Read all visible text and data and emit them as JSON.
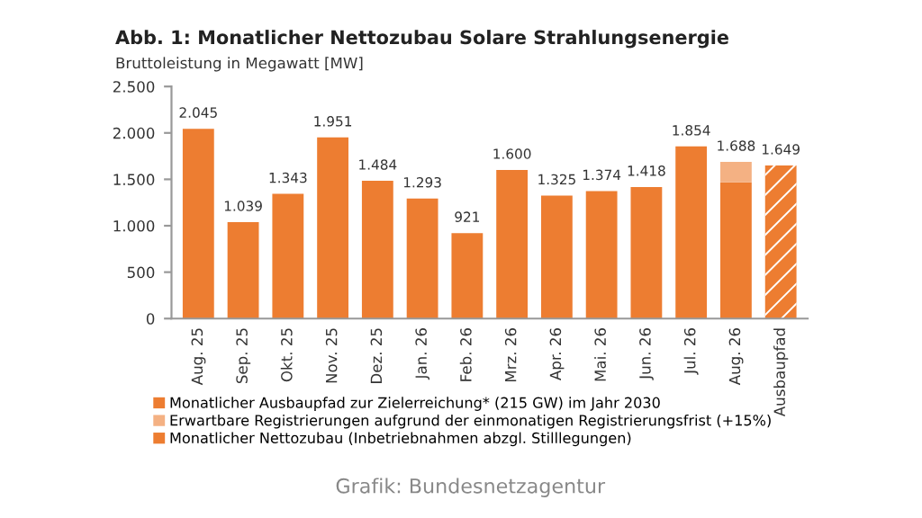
{
  "chart_data": {
    "type": "bar",
    "title": "Abb. 1: Monatlicher Nettozubau Solare Strahlungsenergie",
    "subtitle": "Bruttoleistung in Megawatt [MW]",
    "categories": [
      "Aug. 25",
      "Sep. 25",
      "Okt. 25",
      "Nov. 25",
      "Dez. 25",
      "Jan. 26",
      "Feb. 26",
      "Mrz. 26",
      "Apr. 26",
      "Mai. 26",
      "Jun. 26",
      "Jul. 26",
      "Aug. 26",
      "Ausbaupfad"
    ],
    "stacked": true,
    "series": [
      {
        "name": "Monatlicher Nettozubau (Inbetriebnahmen abzgl. Stilllegungen)",
        "color": "#ed7d31",
        "values": [
          2045,
          1039,
          1343,
          1951,
          1484,
          1293,
          921,
          1600,
          1325,
          1374,
          1418,
          1854,
          1468,
          null
        ]
      },
      {
        "name": "Erwartbare Registrierungen aufgrund der einmonatigen Registrierungsfrist (+15%)",
        "color": "#f4b183",
        "values": [
          null,
          null,
          null,
          null,
          null,
          null,
          null,
          null,
          null,
          null,
          null,
          null,
          220,
          null
        ]
      },
      {
        "name": "Monatlicher Ausbaupfad zur Zielerreichung* (215 GW) im Jahr 2030",
        "color": "#ed7d31",
        "line_style": "dashed",
        "values": [
          null,
          null,
          null,
          null,
          null,
          null,
          null,
          null,
          null,
          null,
          null,
          null,
          null,
          1649
        ]
      }
    ],
    "totals": [
      "2.045",
      "1.039",
      "1.343",
      "1.951",
      "1.484",
      "1.293",
      "921",
      "1.600",
      "1.325",
      "1.374",
      "1.418",
      "1.854",
      "1.688",
      "1.649"
    ],
    "ylim": [
      0,
      2500
    ],
    "yticks": [
      0,
      500,
      {
        "value": 1000,
        "label": "1.000"
      },
      {
        "value": 1500,
        "label": "1.500"
      },
      {
        "value": 2000,
        "label": "2.000"
      },
      {
        "value": 2500,
        "label": "2.500"
      }
    ],
    "grid": false,
    "legend": "bottom",
    "annotations": [
      "Grafik: Bundesnetzagentur"
    ]
  }
}
